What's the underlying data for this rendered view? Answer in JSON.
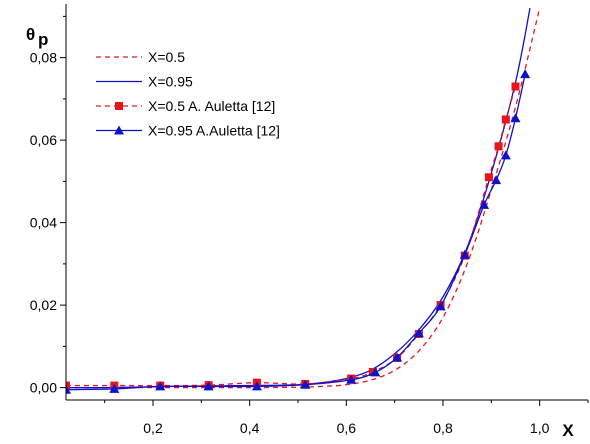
{
  "chart_data": {
    "type": "line",
    "xlabel": "X",
    "ylabel_main": "θ",
    "ylabel_sub": "p",
    "xlim": [
      0.02,
      1.1
    ],
    "ylim": [
      -0.003,
      0.093
    ],
    "x_ticks": [
      {
        "v": 0.2,
        "label": "0,2"
      },
      {
        "v": 0.4,
        "label": "0,4"
      },
      {
        "v": 0.6,
        "label": "0,6"
      },
      {
        "v": 0.8,
        "label": "0,8"
      },
      {
        "v": 1.0,
        "label": "1,0"
      }
    ],
    "y_ticks": [
      {
        "v": 0.0,
        "label": "0,00"
      },
      {
        "v": 0.02,
        "label": "0,02"
      },
      {
        "v": 0.04,
        "label": "0,04"
      },
      {
        "v": 0.06,
        "label": "0,06"
      },
      {
        "v": 0.08,
        "label": "0,08"
      }
    ],
    "grid": false,
    "legend_position": "top-left",
    "series": [
      {
        "name": "X=0.5",
        "style": "dashed",
        "marker": "none",
        "color": "#e8141c",
        "x": [
          0.02,
          0.1,
          0.2,
          0.3,
          0.4,
          0.5,
          0.55,
          0.6,
          0.65,
          0.7,
          0.75,
          0.8,
          0.85,
          0.9,
          0.95,
          1.0
        ],
        "y": [
          0.0,
          0.0,
          0.0,
          0.0,
          0.0,
          0.0001,
          0.0003,
          0.0007,
          0.0018,
          0.0042,
          0.0089,
          0.017,
          0.03,
          0.048,
          0.068,
          0.092
        ]
      },
      {
        "name": "X=0.95",
        "style": "solid",
        "marker": "none",
        "color": "#1010c8",
        "x": [
          0.02,
          0.1,
          0.2,
          0.3,
          0.4,
          0.5,
          0.55,
          0.6,
          0.65,
          0.7,
          0.75,
          0.8,
          0.85,
          0.9,
          0.95,
          0.98
        ],
        "y": [
          0.0,
          0.0,
          0.0002,
          0.0004,
          0.0005,
          0.0007,
          0.0012,
          0.0022,
          0.0042,
          0.0082,
          0.014,
          0.022,
          0.034,
          0.052,
          0.074,
          0.092
        ]
      },
      {
        "name": "X=0.5 A. Auletta [12]",
        "style": "dashed",
        "marker": "square",
        "color": "#e8141c",
        "x": [
          0.02,
          0.12,
          0.215,
          0.315,
          0.415,
          0.515,
          0.61,
          0.655,
          0.705,
          0.75,
          0.795,
          0.845,
          0.895,
          0.915,
          0.93,
          0.95
        ],
        "y": [
          0.0005,
          0.0005,
          0.0005,
          0.0006,
          0.0012,
          0.0009,
          0.0022,
          0.0038,
          0.0072,
          0.013,
          0.02,
          0.032,
          0.051,
          0.0585,
          0.065,
          0.073
        ]
      },
      {
        "name": "X=0.95 A.Auletta [12]",
        "style": "solid",
        "marker": "triangle",
        "color": "#1010c8",
        "x": [
          0.02,
          0.12,
          0.215,
          0.315,
          0.415,
          0.515,
          0.61,
          0.66,
          0.705,
          0.75,
          0.795,
          0.845,
          0.885,
          0.91,
          0.93,
          0.95,
          0.97
        ],
        "y": [
          -0.0005,
          -0.0003,
          0.0003,
          0.0003,
          0.0003,
          0.0007,
          0.0019,
          0.0037,
          0.0073,
          0.0132,
          0.0197,
          0.0322,
          0.0443,
          0.0503,
          0.0563,
          0.0653,
          0.076
        ]
      }
    ]
  }
}
